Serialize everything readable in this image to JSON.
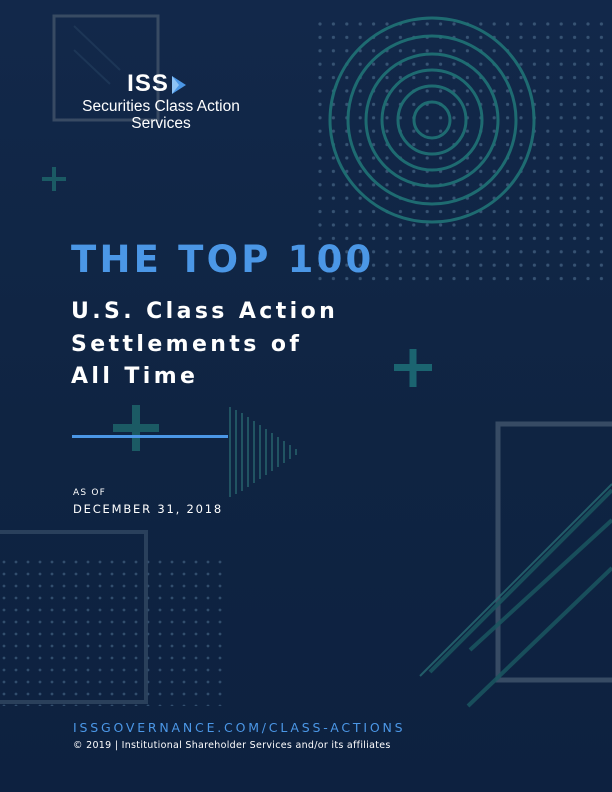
{
  "logo": {
    "mark": "ISS",
    "line1": "Securities Class Action",
    "line2": "Services"
  },
  "title": {
    "main": "THE TOP 100",
    "subtitle_lines": [
      "U.S. Class Action",
      "Settlements of",
      "All Time"
    ]
  },
  "as_of": {
    "label": "AS OF",
    "date": "DECEMBER 31, 2018"
  },
  "footer": {
    "url": "ISSGOVERNANCE.COM/CLASS-ACTIONS",
    "copyright": "© 2019 | Institutional Shareholder Services and/or its affiliates"
  },
  "colors": {
    "background": "#0f2442",
    "accent_blue": "#4b97e6",
    "accent_teal": "#1f6f74",
    "text": "#ffffff"
  },
  "icons": [
    "plus-icon",
    "play-triangle-icon",
    "concentric-circles-graphic",
    "dot-grid-graphic"
  ]
}
